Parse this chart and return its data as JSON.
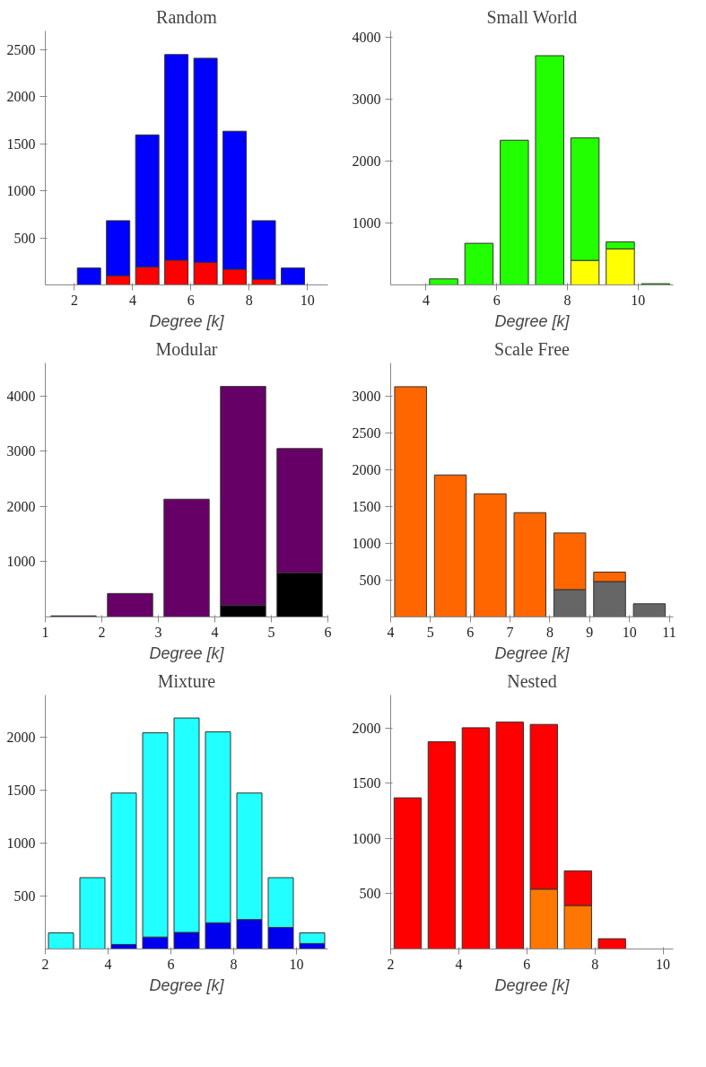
{
  "chart_data": [
    {
      "type": "bar",
      "title": "Random",
      "xlabel": "Degree [k]",
      "stacked": true,
      "x": [
        2.5,
        3.5,
        4.5,
        5.5,
        6.5,
        7.5,
        8.5,
        9.5
      ],
      "xlim": [
        1,
        10.7
      ],
      "xticks": [
        2,
        4,
        6,
        8,
        10
      ],
      "ylim": [
        0,
        2700
      ],
      "yticks": [
        500,
        1000,
        1500,
        2000,
        2500
      ],
      "series": [
        {
          "color": "#ff0000",
          "values": [
            0,
            98,
            190,
            263,
            239,
            166,
            59,
            0
          ]
        },
        {
          "color": "#0000ff",
          "values": [
            180,
            585,
            1405,
            2186,
            2171,
            1468,
            624,
            180
          ]
        }
      ]
    },
    {
      "type": "bar",
      "title": "Small World",
      "xlabel": "Degree [k]",
      "stacked": true,
      "x": [
        4.5,
        5.5,
        6.5,
        7.5,
        8.5,
        9.5,
        10.5
      ],
      "xlim": [
        3,
        11
      ],
      "xticks": [
        4,
        6,
        8,
        10
      ],
      "ylim": [
        0,
        4100
      ],
      "yticks": [
        1000,
        2000,
        3000,
        4000
      ],
      "series": [
        {
          "color": "#ffff00",
          "values": [
            0,
            0,
            0,
            0,
            396,
            582,
            0
          ]
        },
        {
          "color": "#22ff00",
          "values": [
            97,
            672,
            2336,
            3701,
            1977,
            112,
            20
          ]
        }
      ]
    },
    {
      "type": "bar",
      "title": "Modular",
      "xlabel": "Degree [k]",
      "stacked": true,
      "x": [
        1.5,
        2.5,
        3.5,
        4.5,
        5.5
      ],
      "xlim": [
        1,
        6
      ],
      "xticks": [
        1,
        2,
        3,
        4,
        5,
        6
      ],
      "ylim": [
        0,
        4600
      ],
      "yticks": [
        1000,
        2000,
        3000,
        4000
      ],
      "series": [
        {
          "color": "#000000",
          "values": [
            0,
            0,
            0,
            208,
            800
          ]
        },
        {
          "color": "#660066",
          "values": [
            20,
            425,
            2133,
            3967,
            2250
          ]
        }
      ]
    },
    {
      "type": "bar",
      "title": "Scale Free",
      "xlabel": "Degree [k]",
      "stacked": true,
      "x": [
        4.5,
        5.5,
        6.5,
        7.5,
        8.5,
        9.5,
        10.5
      ],
      "xlim": [
        4,
        11.1
      ],
      "xticks": [
        4,
        5,
        6,
        7,
        8,
        9,
        10,
        11
      ],
      "ylim": [
        0,
        3450
      ],
      "yticks": [
        500,
        1000,
        1500,
        2000,
        2500,
        3000
      ],
      "series": [
        {
          "color": "#666666",
          "values": [
            0,
            0,
            0,
            0,
            372,
            481,
            179
          ]
        },
        {
          "color": "#ff6600",
          "values": [
            3128,
            1929,
            1673,
            1417,
            769,
            128,
            0
          ]
        }
      ]
    },
    {
      "type": "bar",
      "title": "Mixture",
      "xlabel": "Degree [k]",
      "stacked": true,
      "x": [
        2.5,
        3.5,
        4.5,
        5.5,
        6.5,
        7.5,
        8.5,
        9.5,
        10.5
      ],
      "xlim": [
        2,
        11
      ],
      "xticks": [
        2,
        4,
        6,
        8,
        10
      ],
      "ylim": [
        0,
        2400
      ],
      "yticks": [
        500,
        1000,
        1500,
        2000
      ],
      "series": [
        {
          "color": "#0000ee",
          "values": [
            0,
            0,
            43,
            113,
            157,
            248,
            278,
            204,
            52
          ]
        },
        {
          "color": "#22ffff",
          "values": [
            152,
            674,
            1431,
            1930,
            2026,
            1804,
            1196,
            470,
            100
          ]
        }
      ]
    },
    {
      "type": "bar",
      "title": "Nested",
      "xlabel": "Degree [k]",
      "stacked": true,
      "x": [
        2.5,
        3.5,
        4.5,
        5.5,
        6.5,
        7.5,
        8.5
      ],
      "xlim": [
        2,
        10.3
      ],
      "xticks": [
        2,
        4,
        6,
        8,
        10
      ],
      "ylim": [
        0,
        2300
      ],
      "yticks": [
        500,
        1000,
        1500,
        2000
      ],
      "series": [
        {
          "color": "#ff7700",
          "values": [
            0,
            0,
            0,
            0,
            542,
            394,
            0
          ]
        },
        {
          "color": "#ff0000",
          "values": [
            1369,
            1877,
            2004,
            2055,
            1492,
            314,
            93
          ]
        }
      ]
    }
  ]
}
